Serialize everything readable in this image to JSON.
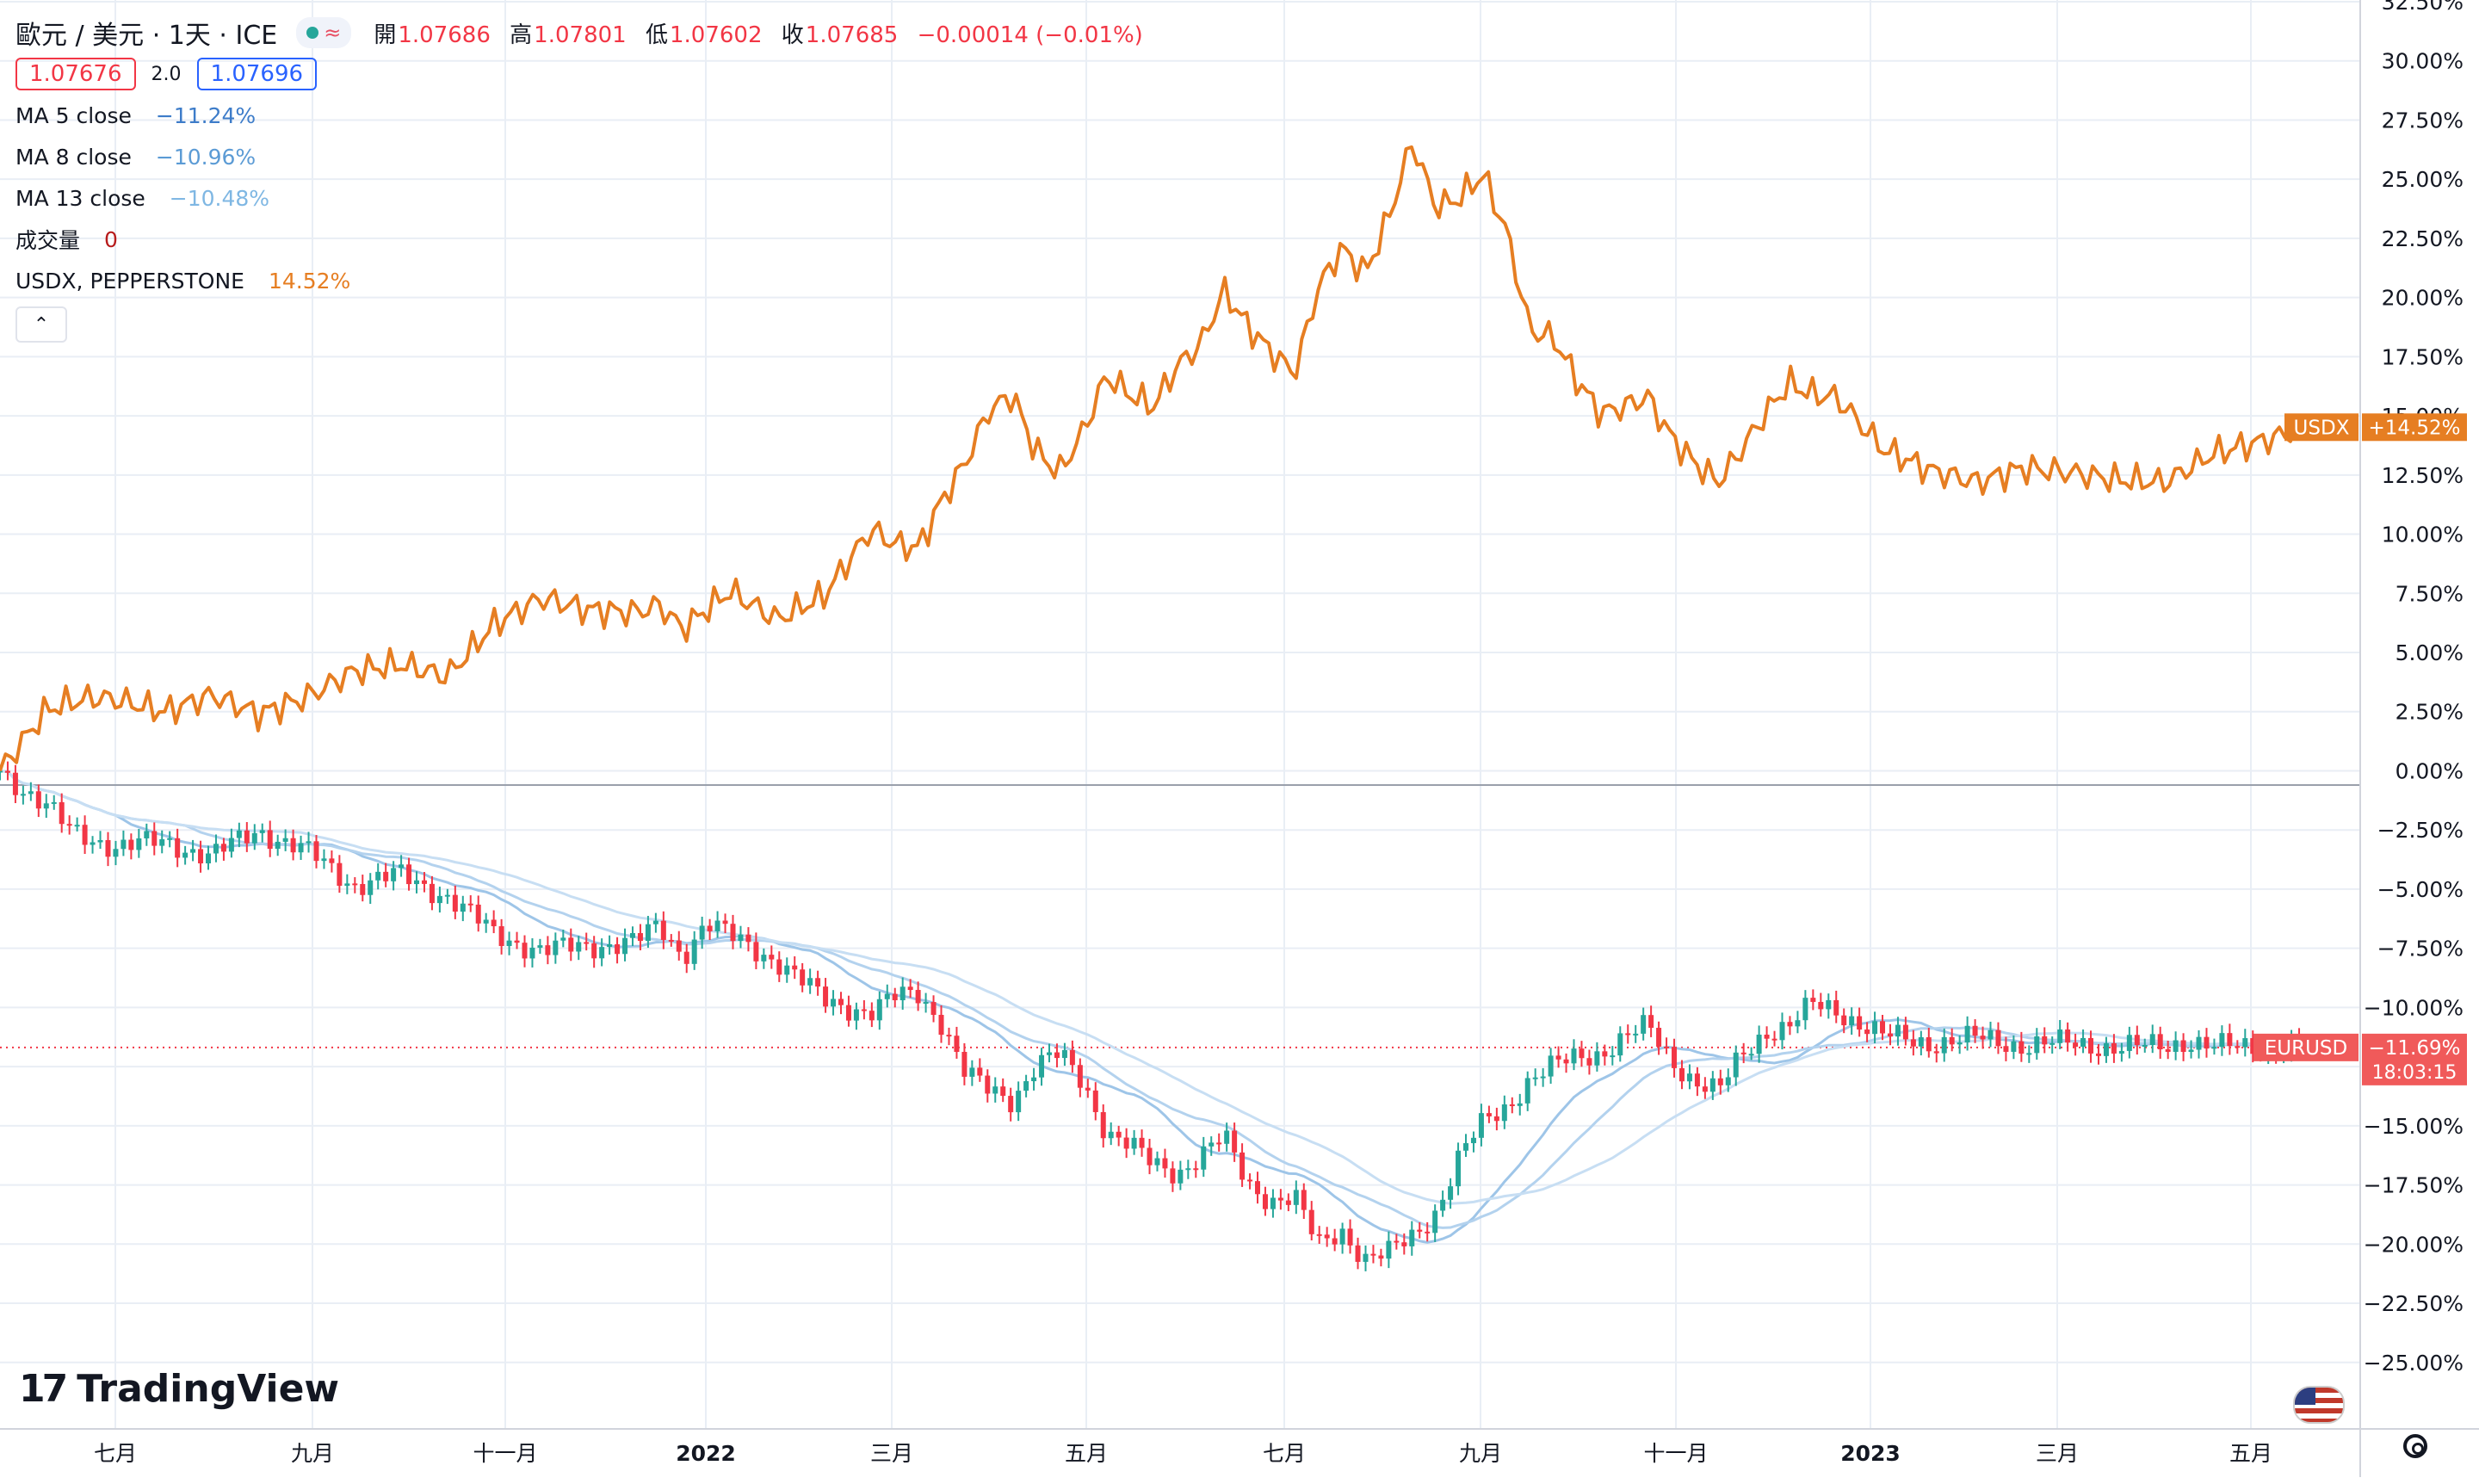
{
  "legend": {
    "symbol": "歐元 / 美元 · 1天 · ICE",
    "wave_icon": "≈",
    "ohlc": [
      {
        "k": "開",
        "v": "1.07686"
      },
      {
        "k": "高",
        "v": "1.07801"
      },
      {
        "k": "低",
        "v": "1.07602"
      },
      {
        "k": "收",
        "v": "1.07685"
      },
      {
        "k": "",
        "v": "−0.00014 (−0.01%)"
      }
    ],
    "bid": "1.07676",
    "spread": "2.0",
    "ask": "1.07696",
    "indicators": [
      {
        "name": "MA 5 close",
        "value": "−11.24%",
        "color": "#3d7cc9"
      },
      {
        "name": "MA 8 close",
        "value": "−10.96%",
        "color": "#5b9bd5"
      },
      {
        "name": "MA 13 close",
        "value": "−10.48%",
        "color": "#7fb7e3"
      },
      {
        "name": "成交量",
        "value": "0",
        "color": "#b71c1c"
      },
      {
        "name": "USDX, PEPPERSTONE",
        "value": "14.52%",
        "color": "#e67e22"
      }
    ],
    "collapse_icon": "⌃"
  },
  "brand": "TradingView",
  "colors": {
    "usdx": "#e67e22",
    "up": "#26a69a",
    "down": "#f23645",
    "ma": [
      "#9ec5e8",
      "#b3d2ee",
      "#c7def3"
    ],
    "grid": "#e9eef5"
  },
  "chart_data": {
    "type": "line",
    "title": "歐元 / 美元 · 1天 · ICE",
    "y_unit": "percent change",
    "ylim": [
      -26.5,
      32.5
    ],
    "y_ticks": [
      "32.50%",
      "30.00%",
      "27.50%",
      "25.00%",
      "22.50%",
      "20.00%",
      "17.50%",
      "15.00%",
      "12.50%",
      "10.00%",
      "7.50%",
      "5.00%",
      "2.50%",
      "0.00%",
      "−2.50%",
      "−5.00%",
      "−7.50%",
      "−10.00%",
      "−12.50%",
      "−15.00%",
      "−17.50%",
      "−20.00%",
      "−22.50%",
      "−25.00%"
    ],
    "x_labels": [
      "七月",
      "九月",
      "十一月",
      "2022",
      "三月",
      "五月",
      "七月",
      "九月",
      "十一月",
      "2023",
      "三月",
      "五月"
    ],
    "x_label_bold": [
      false,
      false,
      false,
      true,
      false,
      false,
      false,
      false,
      false,
      true,
      false,
      false
    ],
    "series": [
      {
        "name": "USDX",
        "style": "line",
        "x": [
          0,
          2,
          3,
          4,
          5,
          7,
          9,
          11,
          13,
          15,
          17,
          19,
          21,
          23,
          25,
          27,
          28,
          29,
          30,
          31,
          33,
          35,
          37,
          38,
          39,
          40,
          41,
          42,
          43,
          44,
          45,
          46,
          47,
          48,
          49,
          50,
          51,
          52,
          53,
          54,
          55,
          56,
          57,
          58,
          59,
          60,
          61,
          62,
          63,
          64,
          65,
          66,
          67,
          68,
          69,
          70,
          71,
          72,
          73,
          74,
          75,
          76,
          77,
          78,
          80,
          82,
          84,
          86,
          88,
          90,
          92,
          93,
          94,
          96,
          97,
          98
        ],
        "y": [
          0,
          2.6,
          2.9,
          3.1,
          3.0,
          2.5,
          3.2,
          2.4,
          3.1,
          4.2,
          4.5,
          4.0,
          6.2,
          7.3,
          6.8,
          6.7,
          7.0,
          6.0,
          6.8,
          7.6,
          6.4,
          7.4,
          10.2,
          9.6,
          9.4,
          11.4,
          13.0,
          15.2,
          15.9,
          13.5,
          12.6,
          14.3,
          16.7,
          15.9,
          15.4,
          17.1,
          18.0,
          20.3,
          18.8,
          17.7,
          16.8,
          20.4,
          22.1,
          21.0,
          23.4,
          26.6,
          23.8,
          24.2,
          25.2,
          22.8,
          18.6,
          18.3,
          16.5,
          15.1,
          15.4,
          15.8,
          14.1,
          13.0,
          12.2,
          13.6,
          15.1,
          16.4,
          15.9,
          15.8,
          13.6,
          12.7,
          12.2,
          12.8,
          12.6,
          12.3,
          12.2,
          12.8,
          13.4,
          13.9,
          14.2,
          14.52
        ]
      },
      {
        "name": "EURUSD",
        "style": "candlestick",
        "x": [
          0,
          2,
          3,
          4,
          5,
          7,
          9,
          11,
          13,
          15,
          17,
          19,
          21,
          23,
          25,
          27,
          28,
          29,
          30,
          31,
          33,
          35,
          37,
          38,
          39,
          40,
          41,
          42,
          43,
          44,
          45,
          46,
          47,
          48,
          49,
          50,
          51,
          52,
          53,
          54,
          55,
          56,
          57,
          58,
          59,
          60,
          61,
          62,
          63,
          64,
          65,
          66,
          67,
          68,
          69,
          70,
          71,
          72,
          73,
          74,
          75,
          76,
          77,
          78,
          80,
          82,
          84,
          86,
          88,
          90,
          92,
          93,
          94,
          96,
          97,
          98
        ],
        "y": [
          0,
          -1.5,
          -2.6,
          -2.9,
          -3.2,
          -3.0,
          -3.6,
          -2.5,
          -3.4,
          -4.8,
          -4.4,
          -5.3,
          -6.9,
          -7.6,
          -7.4,
          -7.2,
          -6.6,
          -7.8,
          -6.4,
          -7.0,
          -8.0,
          -9.7,
          -10.2,
          -9.6,
          -9.4,
          -10.6,
          -12.8,
          -13.5,
          -13.9,
          -12.4,
          -12.0,
          -13.2,
          -15.2,
          -15.8,
          -16.7,
          -17.0,
          -16.2,
          -15.5,
          -17.5,
          -18.1,
          -18.0,
          -20.1,
          -19.4,
          -20.6,
          -20.4,
          -19.7,
          -18.6,
          -16.3,
          -14.9,
          -14.2,
          -13.0,
          -12.5,
          -12.1,
          -11.9,
          -11.3,
          -10.8,
          -12.2,
          -13.1,
          -13.6,
          -12.0,
          -11.0,
          -10.8,
          -9.9,
          -10.1,
          -11.2,
          -11.5,
          -11.3,
          -11.6,
          -11.5,
          -11.7,
          -11.6,
          -11.4,
          -11.7,
          -11.6,
          -11.7,
          -11.69
        ]
      }
    ],
    "ma_periods": [
      5,
      8,
      13
    ],
    "price_labels": [
      {
        "name": "USDX",
        "value": "+14.52%",
        "color": "#e67e22"
      },
      {
        "name": "EURUSD",
        "value": "−11.69%",
        "countdown": "18:03:15",
        "color": "#f05a5a"
      }
    ],
    "grid": true
  }
}
